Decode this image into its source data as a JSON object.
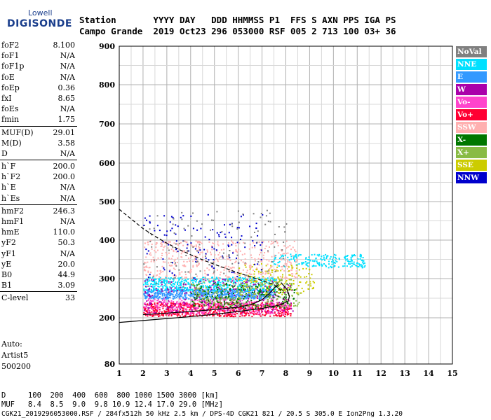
{
  "logo": {
    "top": "Lowell",
    "brand": "DIGISONDE"
  },
  "header": {
    "line1": "Station       YYYY DAY   DDD HHMMSS P1  FFS S AXN PPS IGA PS",
    "line2": "Campo Grande  2019 Oct23 296 053000 RSF 005 2 713 100 03+ 36"
  },
  "params": [
    {
      "group": [
        {
          "name": "foF2",
          "value": "8.100"
        },
        {
          "name": "foF1",
          "value": "N/A"
        },
        {
          "name": "foF1p",
          "value": "N/A"
        },
        {
          "name": "foE",
          "value": "N/A"
        },
        {
          "name": "foEp",
          "value": "0.36"
        },
        {
          "name": "fxI",
          "value": "8.65"
        },
        {
          "name": "foEs",
          "value": "N/A"
        },
        {
          "name": "fmin",
          "value": "1.75"
        }
      ]
    },
    {
      "group": [
        {
          "name": "MUF(D)",
          "value": "29.01"
        },
        {
          "name": "M(D)",
          "value": "3.58"
        },
        {
          "name": "D",
          "value": "N/A"
        }
      ]
    },
    {
      "group": [
        {
          "name": "h`F",
          "value": "200.0"
        },
        {
          "name": "h`F2",
          "value": "200.0"
        },
        {
          "name": "h`E",
          "value": "N/A"
        },
        {
          "name": "h`Es",
          "value": "N/A"
        }
      ]
    },
    {
      "group": [
        {
          "name": "hmF2",
          "value": "246.3"
        },
        {
          "name": "hmF1",
          "value": "N/A"
        },
        {
          "name": "hmE",
          "value": "110.0"
        },
        {
          "name": "yF2",
          "value": "50.3"
        },
        {
          "name": "yF1",
          "value": "N/A"
        },
        {
          "name": "yE",
          "value": "20.0"
        },
        {
          "name": "B0",
          "value": "44.9"
        },
        {
          "name": "B1",
          "value": "3.09"
        }
      ]
    },
    {
      "group": [
        {
          "name": "C-level",
          "value": "33"
        }
      ]
    }
  ],
  "auto": {
    "line1": "Auto:",
    "line2": "Artist5",
    "line3": "500200"
  },
  "legend": [
    {
      "label": "NoVal",
      "color": "#808080"
    },
    {
      "label": "NNE",
      "color": "#00e0ff"
    },
    {
      "label": "E",
      "color": "#3399ff"
    },
    {
      "label": "W",
      "color": "#aa00aa"
    },
    {
      "label": "Vo-",
      "color": "#ff44cc"
    },
    {
      "label": "Vo+",
      "color": "#ff0033"
    },
    {
      "label": "SSW",
      "color": "#ffb0b0"
    },
    {
      "label": "X-",
      "color": "#007700"
    },
    {
      "label": "X+",
      "color": "#88bb44"
    },
    {
      "label": "SSE",
      "color": "#cccc00"
    },
    {
      "label": "NNW",
      "color": "#0000cc"
    }
  ],
  "bottom": {
    "d_line": "D     100  200  400  600  800 1000 1500 3000 [km]",
    "muf_line": "MUF   8.4  8.5  9.0  9.8 10.9 12.4 17.0 29.0 [MHz]",
    "file_line": "CGK21_2019296053000.RSF / 284fx512h 50 kHz 2.5 km / DPS-4D CGK21 821 / 20.5 S 305.0 E Ion2Png 1.3.20"
  },
  "chart_data": {
    "type": "scatter",
    "xlim": [
      1,
      15
    ],
    "ylim": [
      80,
      900
    ],
    "x_ticks": [
      1,
      2,
      3,
      4,
      5,
      6,
      7,
      8,
      9,
      10,
      11,
      12,
      13,
      14,
      15
    ],
    "y_ticks": [
      80,
      200,
      300,
      400,
      500,
      600,
      700,
      800,
      900
    ],
    "grid": true,
    "clusters": [
      {
        "name": "E",
        "color": "#3399ff",
        "x": [
          2.0,
          7.5
        ],
        "y": [
          250,
          275
        ],
        "n": 700
      },
      {
        "name": "NNE",
        "color": "#00e0ff",
        "x": [
          2.0,
          7.6
        ],
        "y": [
          270,
          305
        ],
        "n": 500
      },
      {
        "name": "NNE",
        "color": "#00e0ff",
        "x": [
          7.4,
          11.3
        ],
        "y": [
          330,
          365
        ],
        "n": 200
      },
      {
        "name": "Vo+",
        "color": "#ff0033",
        "x": [
          2.0,
          8.2
        ],
        "y": [
          205,
          240
        ],
        "n": 700
      },
      {
        "name": "Vo-",
        "color": "#ff44cc",
        "x": [
          2.0,
          8.2
        ],
        "y": [
          210,
          250
        ],
        "n": 350
      },
      {
        "name": "W",
        "color": "#aa00aa",
        "x": [
          2.0,
          8.3
        ],
        "y": [
          215,
          300
        ],
        "n": 250
      },
      {
        "name": "SSW",
        "color": "#ffb0b0",
        "x": [
          2.0,
          8.5
        ],
        "y": [
          300,
          400
        ],
        "n": 450
      },
      {
        "name": "X-",
        "color": "#007700",
        "x": [
          4.0,
          8.4
        ],
        "y": [
          225,
          290
        ],
        "n": 200
      },
      {
        "name": "X+",
        "color": "#88bb44",
        "x": [
          4.0,
          8.6
        ],
        "y": [
          230,
          300
        ],
        "n": 200
      },
      {
        "name": "SSE",
        "color": "#cccc00",
        "x": [
          6.0,
          9.2
        ],
        "y": [
          260,
          340
        ],
        "n": 150
      },
      {
        "name": "NNW",
        "color": "#0000cc",
        "x": [
          2.0,
          7.0
        ],
        "y": [
          300,
          470
        ],
        "n": 120
      },
      {
        "name": "NoVal",
        "color": "#808080",
        "x": [
          2.0,
          8.0
        ],
        "y": [
          280,
          480
        ],
        "n": 120
      }
    ],
    "traces": [
      {
        "name": "dashed",
        "style": "dashed",
        "points": [
          [
            1.0,
            480
          ],
          [
            1.5,
            455
          ],
          [
            2.0,
            430
          ],
          [
            2.5,
            410
          ],
          [
            3.0,
            392
          ],
          [
            3.5,
            376
          ],
          [
            4.0,
            362
          ],
          [
            4.5,
            349
          ],
          [
            5.0,
            337
          ],
          [
            5.5,
            326
          ],
          [
            6.0,
            315
          ],
          [
            6.5,
            305
          ],
          [
            7.0,
            295
          ],
          [
            7.5,
            285
          ],
          [
            7.8,
            270
          ]
        ]
      },
      {
        "name": "lower",
        "style": "solid",
        "points": [
          [
            1.0,
            188
          ],
          [
            2.0,
            193
          ],
          [
            3.0,
            198
          ],
          [
            4.0,
            203
          ],
          [
            5.0,
            209
          ],
          [
            6.0,
            216
          ],
          [
            7.0,
            224
          ],
          [
            7.7,
            232
          ],
          [
            8.1,
            242
          ],
          [
            8.15,
            255
          ],
          [
            8.05,
            272
          ],
          [
            7.8,
            290
          ]
        ]
      },
      {
        "name": "upper",
        "style": "solid",
        "points": [
          [
            2.0,
            208
          ],
          [
            3.0,
            212
          ],
          [
            4.0,
            216
          ],
          [
            5.0,
            221
          ],
          [
            6.0,
            227
          ],
          [
            6.6,
            235
          ],
          [
            7.0,
            246
          ],
          [
            7.3,
            262
          ],
          [
            7.55,
            278
          ],
          [
            7.7,
            285
          ]
        ]
      }
    ]
  }
}
